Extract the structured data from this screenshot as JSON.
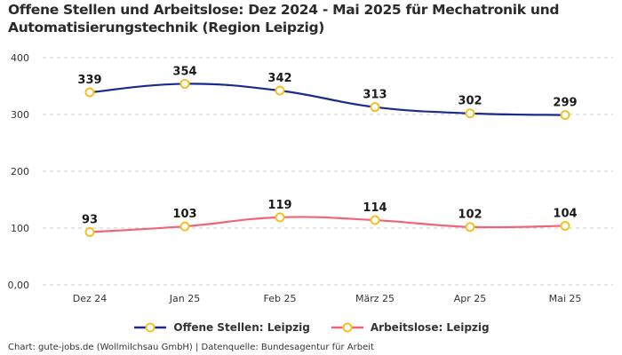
{
  "title": "Offene Stellen und Arbeitslose: Dez 2024 - Mai 2025 für Mechatronik und Automatisierungstechnik (Region Leipzig)",
  "footer": "Chart: gute-jobs.de (Wollmilchsau GmbH) | Datenquelle: Bundesagentur für Arbeit",
  "chart_data": {
    "type": "line",
    "title": "Offene Stellen und Arbeitslose: Dez 2024 - Mai 2025 für Mechatronik und Automatisierungstechnik (Region Leipzig)",
    "xlabel": "",
    "ylabel": "",
    "categories": [
      "Dez 24",
      "Jan 25",
      "Feb 25",
      "März 25",
      "Apr 25",
      "Mai 25"
    ],
    "ylim": [
      0,
      400
    ],
    "yticks": [
      0,
      100,
      200,
      300,
      400
    ],
    "ytick_labels": [
      "0,00",
      "100",
      "200",
      "300",
      "400"
    ],
    "grid": true,
    "legend_position": "bottom",
    "series": [
      {
        "name": "Offene Stellen: Leipzig",
        "color": "#1a2b8c",
        "marker_color": "#f5c022",
        "values": [
          339,
          354,
          342,
          313,
          302,
          299
        ]
      },
      {
        "name": "Arbeitslose: Leipzig",
        "color": "#f0647a",
        "marker_color": "#f5c022",
        "values": [
          93,
          103,
          119,
          114,
          102,
          104
        ]
      }
    ]
  }
}
